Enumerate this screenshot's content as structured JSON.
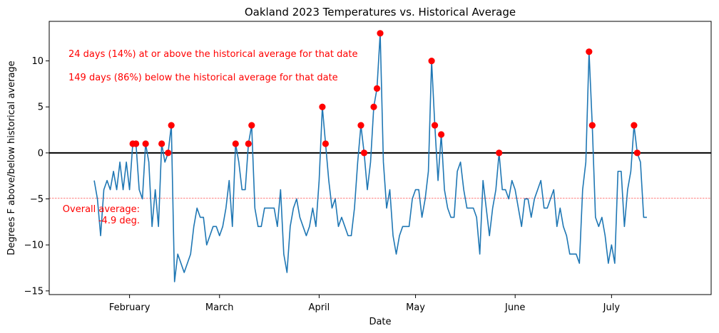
{
  "chart_data": {
    "type": "line",
    "title": "Oakland 2023 Temperatures vs. Historical Average",
    "xlabel": "Date",
    "ylabel": "Degrees F above/below historical average",
    "x_start": "2023-01-21",
    "x_end": "2023-07-25",
    "xlim": [
      "2023-01-07",
      "2023-08-01"
    ],
    "ylim": [
      -15.4,
      14.3
    ],
    "x_ticks": [
      {
        "label": "February",
        "date": "2023-02-01"
      },
      {
        "label": "March",
        "date": "2023-03-01"
      },
      {
        "label": "April",
        "date": "2023-04-01"
      },
      {
        "label": "May",
        "date": "2023-05-01"
      },
      {
        "label": "June",
        "date": "2023-06-01"
      },
      {
        "label": "July",
        "date": "2023-07-01"
      }
    ],
    "y_ticks": [
      -15,
      -10,
      -5,
      0,
      5,
      10
    ],
    "series": [
      {
        "color": "#1f77b4",
        "values": [
          -3,
          -5,
          -9,
          -4,
          -3,
          -4,
          -2,
          -4,
          -1,
          -4,
          -1,
          -4,
          1,
          1,
          -4,
          -5,
          1,
          -1,
          -8,
          -4,
          -8,
          1,
          -1,
          0,
          3,
          -14,
          -11,
          -12,
          -13,
          -12,
          -11,
          -8,
          -6,
          -7,
          -7,
          -10,
          -9,
          -8,
          -8,
          -9,
          -8,
          -6,
          -3,
          -8,
          1,
          -1,
          -4,
          -4,
          1,
          3,
          -6,
          -8,
          -8,
          -6,
          -6,
          -6,
          -6,
          -8,
          -4,
          -11,
          -13,
          -8,
          -6,
          -5,
          -7,
          -8,
          -9,
          -8,
          -6,
          -8,
          -3,
          5,
          1,
          -3,
          -6,
          -5,
          -8,
          -7,
          -8,
          -9,
          -9,
          -6,
          -1,
          3,
          0,
          -4,
          -1,
          5,
          7,
          13,
          -1,
          -6,
          -4,
          -9,
          -11,
          -9,
          -8,
          -8,
          -8,
          -5,
          -4,
          -4,
          -7,
          -5,
          -2,
          10,
          3,
          -3,
          2,
          -4,
          -6,
          -7,
          -7,
          -2,
          -1,
          -4,
          -6,
          -6,
          -6,
          -7,
          -11,
          -3,
          -6,
          -9,
          -6,
          -4,
          0,
          -4,
          -4,
          -5,
          -3,
          -4,
          -6,
          -8,
          -5,
          -5,
          -7,
          -5,
          -4,
          -3,
          -6,
          -6,
          -5,
          -4,
          -8,
          -6,
          -8,
          -9,
          -11,
          -11,
          -11,
          -12,
          -4,
          -1,
          11,
          3,
          -7,
          -8,
          -7,
          -9,
          -12,
          -10,
          -12,
          -2,
          -2,
          -8,
          -4,
          -2,
          3,
          0,
          -1,
          -7,
          -7
        ]
      }
    ],
    "markers": {
      "color": "red",
      "rule": "days at or above 0"
    },
    "reference_line": {
      "y": 0,
      "color": "#000000"
    },
    "average_line": {
      "y": -4.9,
      "color": "red",
      "style": "dashed"
    },
    "annotations": {
      "above": "24 days (14%) at or above the historical average for that date",
      "below": "149 days (86%) below the historical average for that date",
      "avg_line1": "Overall average:",
      "avg_line2": "-4.9 deg."
    },
    "grid": false,
    "legend": "none"
  }
}
